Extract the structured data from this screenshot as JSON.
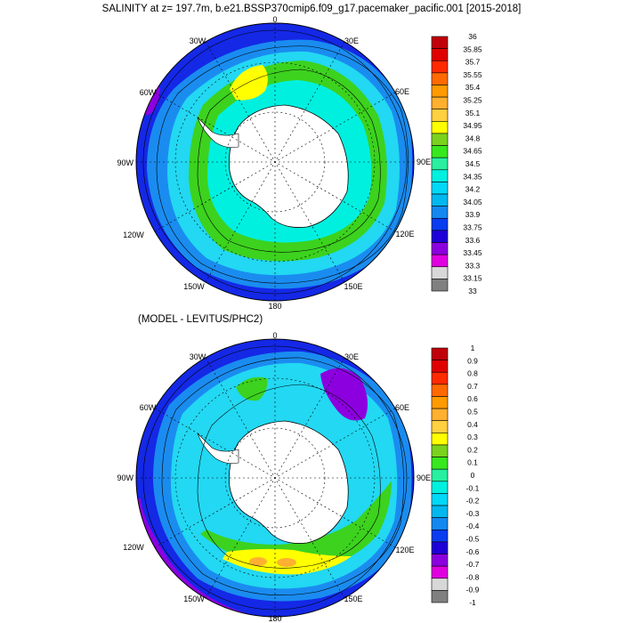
{
  "top_panel": {
    "title": "SALINITY at z= 197.7m, b.e21.BSSP370cmip6.f09_g17.pacemaker_pacific.001 [2015-2018]",
    "lon_labels": [
      "0",
      "30E",
      "60E",
      "90E",
      "120E",
      "150E",
      "180",
      "150W",
      "120W",
      "90W",
      "60W",
      "30W"
    ],
    "colorbar": {
      "labels": [
        "36",
        "35.85",
        "35.7",
        "35.55",
        "35.4",
        "35.25",
        "35.1",
        "34.95",
        "34.8",
        "34.65",
        "34.5",
        "34.35",
        "34.2",
        "34.05",
        "33.9",
        "33.75",
        "33.6",
        "33.45",
        "33.3",
        "33.15",
        "33"
      ],
      "colors": [
        "#c0000a",
        "#e00000",
        "#ff2a00",
        "#ff6a00",
        "#ff9a00",
        "#ffb030",
        "#ffd040",
        "#ffff00",
        "#7ad21e",
        "#38e81e",
        "#28f0a0",
        "#00f0e0",
        "#00d8f8",
        "#00b8f0",
        "#1488f0",
        "#0a3cf0",
        "#1e00d8",
        "#8c00e0",
        "#e000e0",
        "#d8d8d8",
        "#808080"
      ]
    }
  },
  "bottom_panel": {
    "title": "(MODEL - LEVITUS/PHC2)",
    "lon_labels": [
      "0",
      "30E",
      "60E",
      "90E",
      "120E",
      "150E",
      "180",
      "150W",
      "120W",
      "90W",
      "60W",
      "30W"
    ],
    "colorbar": {
      "labels": [
        "1",
        "0.9",
        "0.8",
        "0.7",
        "0.6",
        "0.5",
        "0.4",
        "0.3",
        "0.2",
        "0.1",
        "0",
        "-0.1",
        "-0.2",
        "-0.3",
        "-0.4",
        "-0.5",
        "-0.6",
        "-0.7",
        "-0.8",
        "-0.9",
        "-1"
      ],
      "colors": [
        "#c0000a",
        "#e00000",
        "#ff2a00",
        "#ff6a00",
        "#ff9a00",
        "#ffb030",
        "#ffd040",
        "#ffff00",
        "#7ad21e",
        "#38e81e",
        "#28f0a0",
        "#00f0e0",
        "#00d8f8",
        "#00b8f0",
        "#1488f0",
        "#0a3cf0",
        "#1e00d8",
        "#8c00e0",
        "#e000e0",
        "#d8d8d8",
        "#808080"
      ]
    }
  },
  "colors": {
    "ocean_outer": "#1428e6",
    "ocean_mid": "#1a8cf0",
    "ocean_light": "#22d8f2",
    "green_band": "#3cd21e",
    "yellow": "#ffff00",
    "purple": "#8c00e0",
    "magenta": "#e000e0",
    "land": "#ffffff"
  }
}
